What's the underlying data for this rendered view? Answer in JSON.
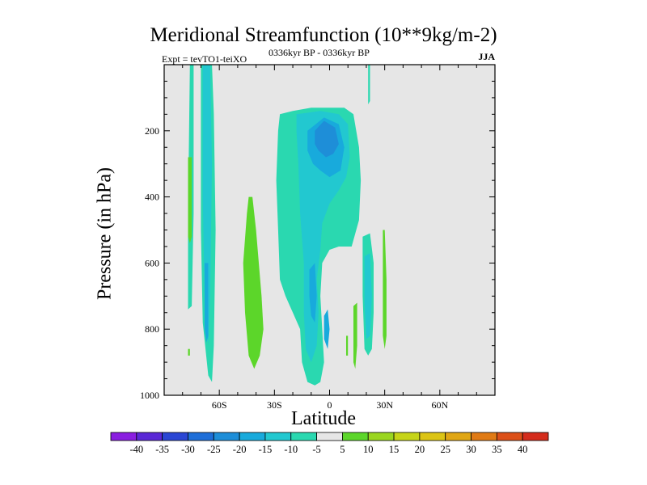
{
  "chart_data": {
    "type": "heatmap",
    "title": "Meridional Streamfunction (10**9kg/m-2)",
    "subtitle_left": "Expt = tevTO1-teiXO",
    "subtitle_center": "0336kyr BP - 0336kyr BP",
    "subtitle_right": "JJA",
    "xlabel": "Latitude",
    "ylabel": "Pressure (in hPa)",
    "xlim": [
      -90,
      90
    ],
    "ylim": [
      1000,
      0
    ],
    "x_ticks": [
      {
        "value": -60,
        "label": "60S"
      },
      {
        "value": -30,
        "label": "30S"
      },
      {
        "value": 0,
        "label": "0"
      },
      {
        "value": 30,
        "label": "30N"
      },
      {
        "value": 60,
        "label": "60N"
      }
    ],
    "y_ticks": [
      {
        "value": 200,
        "label": "200"
      },
      {
        "value": 400,
        "label": "400"
      },
      {
        "value": 600,
        "label": "600"
      },
      {
        "value": 800,
        "label": "800"
      },
      {
        "value": 1000,
        "label": "1000"
      }
    ],
    "background_color": "#e6e6e6",
    "colorbar": {
      "labels": [
        "-40",
        "-35",
        "-30",
        "-25",
        "-20",
        "-15",
        "-10",
        "-5",
        "5",
        "10",
        "15",
        "20",
        "25",
        "30",
        "35",
        "40"
      ],
      "colors": [
        "#8a1ee0",
        "#5a28d6",
        "#2a46d4",
        "#1e6ed8",
        "#1e8ed8",
        "#18aadc",
        "#22c8d0",
        "#2ad8b0",
        "#e6e6e6",
        "#5cd62a",
        "#9ad620",
        "#c6d418",
        "#dcc414",
        "#e0a614",
        "#e07a14",
        "#dc5018",
        "#d42c1c"
      ]
    },
    "regions": [
      {
        "level": -5,
        "color": "#2ad8b0",
        "points": [
          [
            -76,
            0
          ],
          [
            -74,
            0
          ],
          [
            -74,
            450
          ],
          [
            -75,
            730
          ],
          [
            -77,
            740
          ],
          [
            -77,
            450
          ]
        ]
      },
      {
        "level": 5,
        "color": "#5cd62a",
        "points": [
          [
            -77,
            280
          ],
          [
            -75,
            280
          ],
          [
            -75,
            520
          ],
          [
            -76,
            540
          ],
          [
            -77,
            520
          ]
        ]
      },
      {
        "level": 5,
        "color": "#5cd62a",
        "points": [
          [
            -77,
            860
          ],
          [
            -76,
            860
          ],
          [
            -76,
            880
          ],
          [
            -77,
            880
          ]
        ]
      },
      {
        "level": -5,
        "color": "#2ad8b0",
        "points": [
          [
            -70,
            0
          ],
          [
            -64,
            0
          ],
          [
            -63,
            150
          ],
          [
            -62,
            500
          ],
          [
            -63,
            850
          ],
          [
            -64,
            960
          ],
          [
            -66,
            940
          ],
          [
            -69,
            780
          ],
          [
            -70,
            500
          ],
          [
            -70,
            200
          ]
        ]
      },
      {
        "level": -10,
        "color": "#22c8d0",
        "points": [
          [
            -69,
            0
          ],
          [
            -65,
            0
          ],
          [
            -64,
            300
          ],
          [
            -65,
            700
          ],
          [
            -66,
            850
          ],
          [
            -68,
            700
          ],
          [
            -69,
            400
          ]
        ]
      },
      {
        "level": -15,
        "color": "#18aadc",
        "points": [
          [
            -68,
            600
          ],
          [
            -66,
            600
          ],
          [
            -66,
            820
          ],
          [
            -67,
            840
          ],
          [
            -68,
            800
          ]
        ]
      },
      {
        "level": 5,
        "color": "#5cd62a",
        "points": [
          [
            -44,
            400
          ],
          [
            -42,
            400
          ],
          [
            -40,
            500
          ],
          [
            -37,
            700
          ],
          [
            -36,
            800
          ],
          [
            -38,
            880
          ],
          [
            -41,
            920
          ],
          [
            -44,
            880
          ],
          [
            -46,
            750
          ],
          [
            -47,
            600
          ],
          [
            -45,
            450
          ]
        ]
      },
      {
        "level": -5,
        "color": "#2ad8b0",
        "points": [
          [
            -27,
            150
          ],
          [
            -20,
            140
          ],
          [
            -10,
            130
          ],
          [
            0,
            130
          ],
          [
            8,
            130
          ],
          [
            13,
            150
          ],
          [
            16,
            250
          ],
          [
            17,
            350
          ],
          [
            16,
            470
          ],
          [
            12,
            550
          ],
          [
            5,
            550
          ],
          [
            0,
            560
          ],
          [
            -4,
            600
          ],
          [
            -5,
            700
          ],
          [
            -4,
            800
          ],
          [
            -3,
            900
          ],
          [
            -5,
            960
          ],
          [
            -8,
            970
          ],
          [
            -12,
            960
          ],
          [
            -15,
            900
          ],
          [
            -16,
            800
          ],
          [
            -20,
            750
          ],
          [
            -24,
            700
          ],
          [
            -27,
            650
          ],
          [
            -28,
            500
          ],
          [
            -29,
            350
          ],
          [
            -28,
            200
          ]
        ]
      },
      {
        "level": -10,
        "color": "#22c8d0",
        "points": [
          [
            -18,
            150
          ],
          [
            -5,
            140
          ],
          [
            5,
            150
          ],
          [
            10,
            180
          ],
          [
            11,
            280
          ],
          [
            9,
            340
          ],
          [
            5,
            380
          ],
          [
            0,
            420
          ],
          [
            -4,
            480
          ],
          [
            -5,
            560
          ],
          [
            -7,
            650
          ],
          [
            -6,
            750
          ],
          [
            -7,
            850
          ],
          [
            -10,
            900
          ],
          [
            -13,
            860
          ],
          [
            -14,
            750
          ],
          [
            -14,
            600
          ],
          [
            -16,
            450
          ],
          [
            -17,
            300
          ],
          [
            -18,
            200
          ]
        ]
      },
      {
        "level": -15,
        "color": "#18aadc",
        "points": [
          [
            -12,
            200
          ],
          [
            -3,
            160
          ],
          [
            5,
            180
          ],
          [
            8,
            250
          ],
          [
            6,
            320
          ],
          [
            0,
            340
          ],
          [
            -5,
            320
          ],
          [
            -9,
            300
          ],
          [
            -12,
            260
          ]
        ]
      },
      {
        "level": -15,
        "color": "#18aadc",
        "points": [
          [
            -11,
            620
          ],
          [
            -8,
            600
          ],
          [
            -7,
            700
          ],
          [
            -8,
            780
          ],
          [
            -10,
            760
          ],
          [
            -11,
            700
          ]
        ]
      },
      {
        "level": -20,
        "color": "#1e8ed8",
        "points": [
          [
            -8,
            200
          ],
          [
            -3,
            170
          ],
          [
            3,
            190
          ],
          [
            5,
            240
          ],
          [
            2,
            270
          ],
          [
            -2,
            280
          ],
          [
            -6,
            260
          ],
          [
            -8,
            240
          ]
        ]
      },
      {
        "level": -15,
        "color": "#18aadc",
        "points": [
          [
            -3,
            760
          ],
          [
            -1,
            740
          ],
          [
            0,
            800
          ],
          [
            -1,
            860
          ],
          [
            -3,
            830
          ]
        ]
      },
      {
        "level": -5,
        "color": "#2ad8b0",
        "points": [
          [
            18,
            520
          ],
          [
            22,
            510
          ],
          [
            24,
            600
          ],
          [
            24,
            750
          ],
          [
            23,
            860
          ],
          [
            21,
            880
          ],
          [
            19,
            860
          ],
          [
            18,
            700
          ]
        ]
      },
      {
        "level": -10,
        "color": "#22c8d0",
        "points": [
          [
            19,
            580
          ],
          [
            22,
            570
          ],
          [
            23,
            700
          ],
          [
            22,
            820
          ],
          [
            20,
            830
          ],
          [
            19,
            720
          ]
        ]
      },
      {
        "level": 5,
        "color": "#5cd62a",
        "points": [
          [
            13,
            730
          ],
          [
            15,
            720
          ],
          [
            15,
            850
          ],
          [
            14,
            920
          ],
          [
            13,
            900
          ]
        ]
      },
      {
        "level": 5,
        "color": "#5cd62a",
        "points": [
          [
            29,
            500
          ],
          [
            30,
            500
          ],
          [
            31,
            650
          ],
          [
            31,
            820
          ],
          [
            30,
            860
          ],
          [
            29,
            820
          ],
          [
            29,
            650
          ]
        ]
      },
      {
        "level": 5,
        "color": "#5cd62a",
        "points": [
          [
            9,
            820
          ],
          [
            10,
            820
          ],
          [
            10,
            880
          ],
          [
            9,
            880
          ]
        ]
      },
      {
        "level": -5,
        "color": "#2ad8b0",
        "points": [
          [
            21,
            0
          ],
          [
            22,
            0
          ],
          [
            22,
            110
          ],
          [
            21,
            120
          ]
        ]
      }
    ]
  }
}
